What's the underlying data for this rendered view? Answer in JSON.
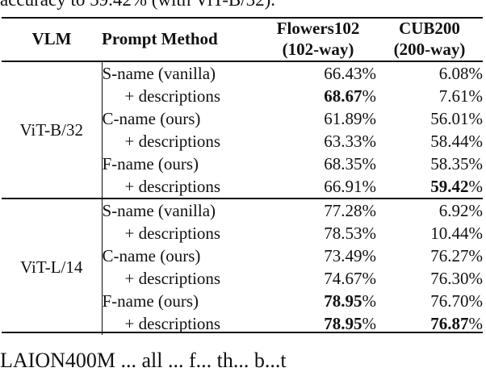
{
  "caption_fragment_top": "accuracy to 59.42% (with ViT-B/32).",
  "caption_fragment_bottom": "LAION400M ... all ... f... th... b...t",
  "table": {
    "headers": {
      "vlm": "VLM",
      "prompt_method": "Prompt Method",
      "flowers_line1": "Flowers102",
      "flowers_line2": "(102-way)",
      "cub_line1": "CUB200",
      "cub_line2": "(200-way)"
    },
    "groups": [
      {
        "vlm": "ViT-B/32",
        "rows": [
          {
            "method": "S-name (vanilla)",
            "flowers": "66.43",
            "flowers_bold": false,
            "cub": "6.08",
            "cub_bold": false
          },
          {
            "method": "+ descriptions",
            "flowers": "68.67",
            "flowers_bold": true,
            "cub": "7.61",
            "cub_bold": false
          },
          {
            "method": "C-name (ours)",
            "flowers": "61.89",
            "flowers_bold": false,
            "cub": "56.01",
            "cub_bold": false
          },
          {
            "method": "+ descriptions",
            "flowers": "63.33",
            "flowers_bold": false,
            "cub": "58.44",
            "cub_bold": false
          },
          {
            "method": "F-name (ours)",
            "flowers": "68.35",
            "flowers_bold": false,
            "cub": "58.35",
            "cub_bold": false
          },
          {
            "method": "+ descriptions",
            "flowers": "66.91",
            "flowers_bold": false,
            "cub": "59.42",
            "cub_bold": true
          }
        ]
      },
      {
        "vlm": "ViT-L/14",
        "rows": [
          {
            "method": "S-name (vanilla)",
            "flowers": "77.28",
            "flowers_bold": false,
            "cub": "6.92",
            "cub_bold": false
          },
          {
            "method": "+ descriptions",
            "flowers": "78.53",
            "flowers_bold": false,
            "cub": "10.44",
            "cub_bold": false
          },
          {
            "method": "C-name (ours)",
            "flowers": "73.49",
            "flowers_bold": false,
            "cub": "76.27",
            "cub_bold": false
          },
          {
            "method": "+ descriptions",
            "flowers": "74.67",
            "flowers_bold": false,
            "cub": "76.30",
            "cub_bold": false
          },
          {
            "method": "F-name (ours)",
            "flowers": "78.95",
            "flowers_bold": true,
            "cub": "76.70",
            "cub_bold": false
          },
          {
            "method": "+ descriptions",
            "flowers": "78.95",
            "flowers_bold": true,
            "cub": "76.87",
            "cub_bold": true
          }
        ]
      }
    ],
    "percent_sign": "%"
  }
}
